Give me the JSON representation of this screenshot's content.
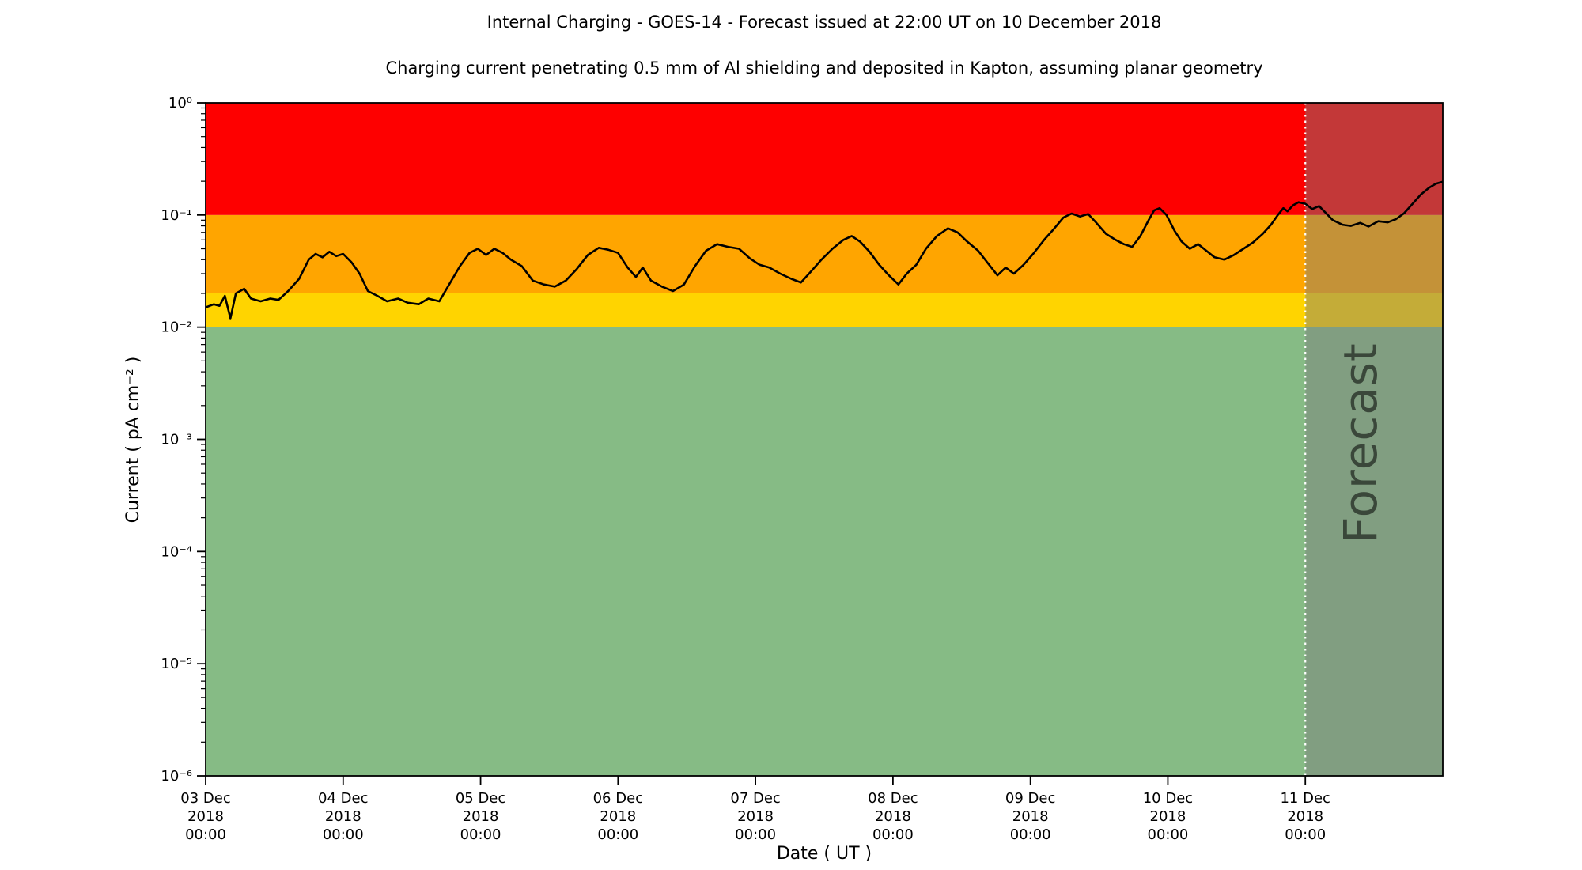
{
  "chart_data": {
    "type": "line",
    "title": "Internal Charging - GOES-14 - Forecast issued at 22:00 UT on 10 December 2018",
    "subtitle": "Charging current penetrating 0.5 mm of Al shielding and deposited in Kapton, assuming planar geometry",
    "xlabel": "Date ( UT )",
    "ylabel": "Current ( pA cm⁻² )",
    "x_range_days": [
      0,
      9
    ],
    "ylim": [
      1e-06,
      1
    ],
    "grid": false,
    "legend": "none",
    "yticks": [
      {
        "value": 1,
        "label": "10⁰"
      },
      {
        "value": 0.1,
        "label": "10⁻¹"
      },
      {
        "value": 0.01,
        "label": "10⁻²"
      },
      {
        "value": 0.001,
        "label": "10⁻³"
      },
      {
        "value": 0.0001,
        "label": "10⁻⁴"
      },
      {
        "value": 1e-05,
        "label": "10⁻⁵"
      },
      {
        "value": 1e-06,
        "label": "10⁻⁶"
      }
    ],
    "xticks": [
      {
        "day": 0,
        "lines": [
          "03 Dec",
          "2018",
          "00:00"
        ]
      },
      {
        "day": 1,
        "lines": [
          "04 Dec",
          "2018",
          "00:00"
        ]
      },
      {
        "day": 2,
        "lines": [
          "05 Dec",
          "2018",
          "00:00"
        ]
      },
      {
        "day": 3,
        "lines": [
          "06 Dec",
          "2018",
          "00:00"
        ]
      },
      {
        "day": 4,
        "lines": [
          "07 Dec",
          "2018",
          "00:00"
        ]
      },
      {
        "day": 5,
        "lines": [
          "08 Dec",
          "2018",
          "00:00"
        ]
      },
      {
        "day": 6,
        "lines": [
          "09 Dec",
          "2018",
          "00:00"
        ]
      },
      {
        "day": 7,
        "lines": [
          "10 Dec",
          "2018",
          "00:00"
        ]
      },
      {
        "day": 8,
        "lines": [
          "11 Dec",
          "2018",
          "00:00"
        ]
      }
    ],
    "bands": [
      {
        "name": "green-quiet",
        "color": "#86bb85",
        "from": 1e-06,
        "to": 0.01
      },
      {
        "name": "yellow-elevated",
        "color": "#ffd400",
        "from": 0.01,
        "to": 0.02
      },
      {
        "name": "orange-high",
        "color": "#ffa500",
        "from": 0.02,
        "to": 0.1
      },
      {
        "name": "red-severe",
        "color": "#fe0000",
        "from": 0.1,
        "to": 1
      }
    ],
    "forecast": {
      "start_day": 8,
      "start_label": "11 Dec 2018 00:00",
      "label": "Forecast",
      "overlay_color": "rgba(125,125,125,0.45)",
      "divider_style": "dotted-white"
    },
    "series": [
      {
        "name": "charging-current",
        "color": "#000000",
        "units": "pA cm⁻²",
        "t_days": [
          0.0,
          0.06,
          0.1,
          0.14,
          0.18,
          0.22,
          0.28,
          0.33,
          0.4,
          0.47,
          0.53,
          0.6,
          0.68,
          0.75,
          0.8,
          0.85,
          0.9,
          0.95,
          1.0,
          1.06,
          1.12,
          1.18,
          1.25,
          1.32,
          1.4,
          1.47,
          1.55,
          1.62,
          1.7,
          1.78,
          1.85,
          1.92,
          1.98,
          2.04,
          2.1,
          2.16,
          2.22,
          2.3,
          2.38,
          2.46,
          2.54,
          2.62,
          2.7,
          2.78,
          2.86,
          2.93,
          3.0,
          3.07,
          3.13,
          3.18,
          3.24,
          3.32,
          3.4,
          3.48,
          3.56,
          3.64,
          3.72,
          3.8,
          3.88,
          3.96,
          4.03,
          4.1,
          4.18,
          4.26,
          4.33,
          4.4,
          4.48,
          4.56,
          4.64,
          4.7,
          4.76,
          4.83,
          4.9,
          4.97,
          5.04,
          5.1,
          5.17,
          5.24,
          5.32,
          5.4,
          5.47,
          5.54,
          5.62,
          5.7,
          5.76,
          5.82,
          5.88,
          5.95,
          6.02,
          6.1,
          6.17,
          6.24,
          6.3,
          6.36,
          6.42,
          6.48,
          6.55,
          6.62,
          6.68,
          6.74,
          6.8,
          6.86,
          6.9,
          6.94,
          6.99,
          7.05,
          7.1,
          7.16,
          7.22,
          7.28,
          7.34,
          7.41,
          7.48,
          7.55,
          7.62,
          7.69,
          7.75,
          7.8,
          7.84,
          7.87,
          7.91,
          7.95,
          8.0,
          8.05,
          8.1,
          8.15,
          8.2,
          8.27,
          8.33,
          8.4,
          8.46,
          8.53,
          8.6,
          8.66,
          8.72,
          8.78,
          8.84,
          8.9,
          8.95,
          9.0
        ],
        "values": [
          0.015,
          0.016,
          0.0155,
          0.019,
          0.012,
          0.02,
          0.022,
          0.018,
          0.017,
          0.018,
          0.0175,
          0.021,
          0.027,
          0.04,
          0.045,
          0.042,
          0.047,
          0.043,
          0.045,
          0.038,
          0.03,
          0.021,
          0.019,
          0.017,
          0.018,
          0.0165,
          0.016,
          0.018,
          0.017,
          0.025,
          0.035,
          0.046,
          0.05,
          0.044,
          0.05,
          0.046,
          0.04,
          0.035,
          0.026,
          0.024,
          0.023,
          0.026,
          0.033,
          0.044,
          0.051,
          0.049,
          0.046,
          0.034,
          0.028,
          0.034,
          0.026,
          0.023,
          0.021,
          0.024,
          0.035,
          0.048,
          0.055,
          0.052,
          0.05,
          0.041,
          0.036,
          0.034,
          0.03,
          0.027,
          0.025,
          0.031,
          0.04,
          0.05,
          0.06,
          0.065,
          0.058,
          0.047,
          0.036,
          0.029,
          0.024,
          0.03,
          0.036,
          0.05,
          0.065,
          0.076,
          0.07,
          0.058,
          0.048,
          0.036,
          0.029,
          0.034,
          0.03,
          0.036,
          0.045,
          0.06,
          0.075,
          0.095,
          0.103,
          0.097,
          0.102,
          0.085,
          0.068,
          0.06,
          0.055,
          0.052,
          0.065,
          0.09,
          0.11,
          0.115,
          0.1,
          0.072,
          0.058,
          0.05,
          0.055,
          0.048,
          0.042,
          0.04,
          0.044,
          0.05,
          0.057,
          0.068,
          0.082,
          0.1,
          0.115,
          0.108,
          0.122,
          0.13,
          0.126,
          0.113,
          0.12,
          0.104,
          0.09,
          0.082,
          0.08,
          0.085,
          0.079,
          0.088,
          0.086,
          0.092,
          0.104,
          0.126,
          0.152,
          0.175,
          0.19,
          0.198
        ]
      }
    ]
  }
}
